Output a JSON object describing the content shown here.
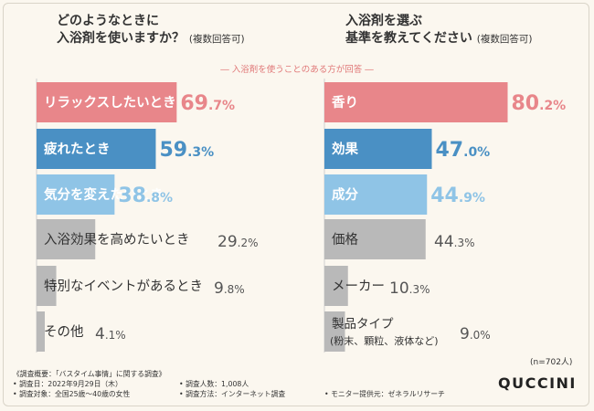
{
  "left": {
    "title_line1": "どのようなときに",
    "title_line2": "入浴剤を使いますか？",
    "title_note": "(複数回答可)"
  },
  "right": {
    "title_line1": "入浴剤を選ぶ",
    "title_line2": "基準を教えてください",
    "title_note": "(複数回答可)"
  },
  "subtitle": "― 入浴剤を使うことのある方が回答 ―",
  "colors": {
    "top1": "#e8868a",
    "top2": "#4a90c4",
    "top3": "#8fc4e6",
    "gray": "#b9b9b9"
  },
  "chart_data": [
    {
      "type": "bar",
      "orientation": "horizontal",
      "title": "どのようなときに入浴剤を使いますか？(複数回答可)",
      "categories": [
        "リラックスしたいとき",
        "疲れたとき",
        "気分を変えたいとき",
        "入浴効果を高めたいとき",
        "特別なイベントがあるとき",
        "その他"
      ],
      "values": [
        69.7,
        59.3,
        38.8,
        29.2,
        9.8,
        4.1
      ],
      "labels": [
        {
          "int": "69",
          "dec": ".7%"
        },
        {
          "int": "59",
          "dec": ".3%"
        },
        {
          "int": "38",
          "dec": ".8%"
        },
        {
          "int": "29",
          "dec": ".2%"
        },
        {
          "int": "9",
          "dec": ".8%"
        },
        {
          "int": "4",
          "dec": ".1%"
        }
      ],
      "unit": "%",
      "xlim": [
        0,
        100
      ]
    },
    {
      "type": "bar",
      "orientation": "horizontal",
      "title": "入浴剤を選ぶ基準を教えてください(複数回答可)",
      "categories": [
        "香り",
        "効果",
        "成分",
        "価格",
        "メーカー",
        "製品タイプ"
      ],
      "category_sub": [
        "",
        "",
        "",
        "",
        "",
        "(粉末、顆粒、液体など)"
      ],
      "values": [
        80.2,
        47.0,
        44.9,
        44.3,
        10.3,
        9.0
      ],
      "labels": [
        {
          "int": "80",
          "dec": ".2%"
        },
        {
          "int": "47",
          "dec": ".0%"
        },
        {
          "int": "44",
          "dec": ".9%"
        },
        {
          "int": "44",
          "dec": ".3%"
        },
        {
          "int": "10",
          "dec": ".3%"
        },
        {
          "int": "9",
          "dec": ".0%"
        }
      ],
      "unit": "%",
      "xlim": [
        0,
        100
      ]
    }
  ],
  "n_label": "(n=702人)",
  "footer": {
    "heading": "《調査概要：「バスタイム事情」に関する調査》",
    "date": "• 調査日：2022年9月29日（木）",
    "target": "• 調査対象：全国25歳～40歳の女性",
    "count": "• 調査人数：1,008人",
    "method": "• 調査方法：インターネット調査",
    "provider": "• モニター提供元：ゼネラルリサーチ"
  },
  "logo": "QUCCINI"
}
